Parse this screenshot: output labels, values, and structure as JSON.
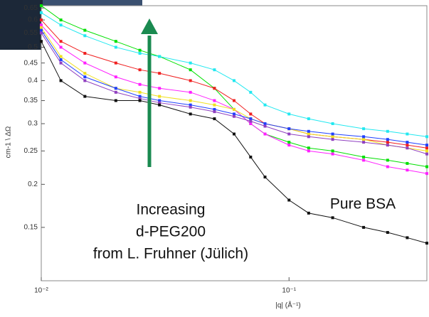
{
  "chart_data": {
    "type": "scatter",
    "xscale": "log",
    "yscale": "log",
    "x_label": "|q| (Å⁻¹)",
    "y_label": "cm-1 \\ ΔΩ",
    "annotations": [
      "Increasing",
      "d-PEG200",
      "from L. Fruhner (Jülich)",
      "Pure BSA"
    ],
    "x": [
      0.01,
      0.012,
      0.015,
      0.02,
      0.025,
      0.03,
      0.04,
      0.05,
      0.06,
      0.07,
      0.08,
      0.1,
      0.12,
      0.15,
      0.2,
      0.25,
      0.3,
      0.36
    ],
    "xlim": [
      0.01,
      0.36
    ],
    "xticks": [
      {
        "value": 0.01,
        "label": "10⁻²"
      },
      {
        "value": 0.1,
        "label": "10⁻¹"
      }
    ],
    "ylim": [
      0.105,
      0.66
    ],
    "yticks": [
      0.15,
      0.2,
      0.25,
      0.3,
      0.35,
      0.4,
      0.45,
      0.5,
      0.55,
      0.6,
      0.65
    ],
    "series": [
      {
        "color": "#00e000",
        "values": [
          0.66,
          0.6,
          0.56,
          0.52,
          0.49,
          0.47,
          0.43,
          0.38,
          0.33,
          0.3,
          0.28,
          0.265,
          0.255,
          0.25,
          0.24,
          0.235,
          0.23,
          0.225
        ]
      },
      {
        "color": "#22e8f0",
        "values": [
          0.63,
          0.58,
          0.54,
          0.5,
          0.48,
          0.47,
          0.45,
          0.43,
          0.4,
          0.37,
          0.34,
          0.32,
          0.31,
          0.3,
          0.29,
          0.285,
          0.28,
          0.275
        ]
      },
      {
        "color": "#f02020",
        "values": [
          0.6,
          0.52,
          0.48,
          0.45,
          0.43,
          0.42,
          0.4,
          0.38,
          0.35,
          0.32,
          0.3,
          0.29,
          0.28,
          0.275,
          0.27,
          0.265,
          0.26,
          0.255
        ]
      },
      {
        "color": "#ff20ff",
        "values": [
          0.58,
          0.5,
          0.45,
          0.41,
          0.39,
          0.38,
          0.37,
          0.35,
          0.33,
          0.3,
          0.28,
          0.26,
          0.25,
          0.245,
          0.235,
          0.225,
          0.22,
          0.215
        ]
      },
      {
        "color": "#f0e020",
        "values": [
          0.57,
          0.47,
          0.42,
          0.38,
          0.37,
          0.36,
          0.35,
          0.34,
          0.33,
          0.31,
          0.3,
          0.29,
          0.28,
          0.275,
          0.27,
          0.26,
          0.255,
          0.25
        ]
      },
      {
        "color": "#2040ff",
        "values": [
          0.56,
          0.46,
          0.41,
          0.38,
          0.36,
          0.35,
          0.34,
          0.33,
          0.32,
          0.31,
          0.3,
          0.29,
          0.285,
          0.28,
          0.275,
          0.27,
          0.265,
          0.26
        ]
      },
      {
        "color": "#9040c0",
        "values": [
          0.55,
          0.45,
          0.4,
          0.37,
          0.355,
          0.345,
          0.335,
          0.325,
          0.315,
          0.305,
          0.295,
          0.28,
          0.275,
          0.27,
          0.265,
          0.26,
          0.255,
          0.245
        ]
      },
      {
        "color": "#111111",
        "values": [
          0.52,
          0.4,
          0.36,
          0.35,
          0.35,
          0.34,
          0.32,
          0.31,
          0.28,
          0.24,
          0.21,
          0.18,
          0.165,
          0.16,
          0.15,
          0.145,
          0.14,
          0.135
        ]
      }
    ]
  }
}
